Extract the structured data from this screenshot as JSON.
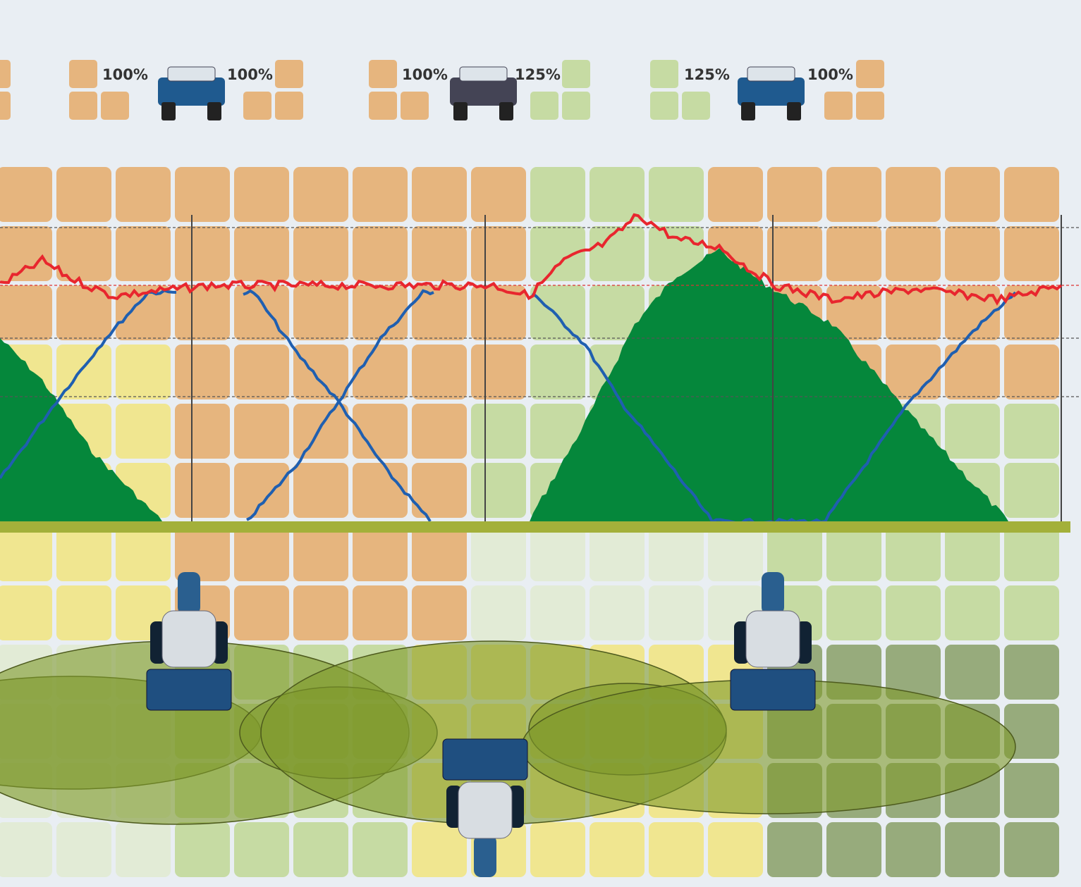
{
  "labels": [
    "100%",
    "100%",
    "100%",
    "125%",
    "125%",
    "100%"
  ]
}
